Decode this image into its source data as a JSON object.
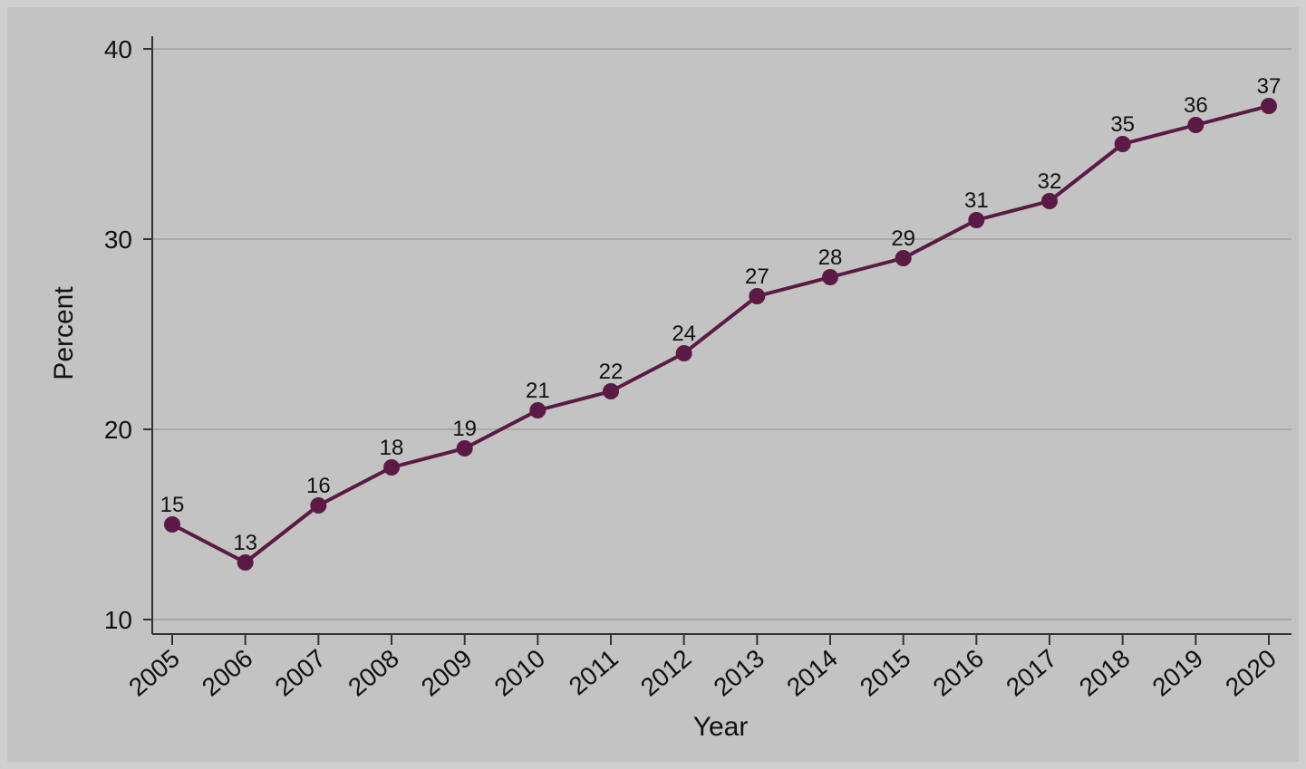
{
  "chart_data": {
    "type": "line",
    "title": "",
    "xlabel": "Year",
    "ylabel": "Percent",
    "x": [
      "2005",
      "2006",
      "2007",
      "2008",
      "2009",
      "2010",
      "2011",
      "2012",
      "2013",
      "2014",
      "2015",
      "2016",
      "2017",
      "2018",
      "2019",
      "2020"
    ],
    "series": [
      {
        "values": [
          15,
          13,
          16,
          18,
          19,
          21,
          22,
          24,
          27,
          28,
          29,
          31,
          32,
          35,
          36,
          37
        ]
      }
    ],
    "ylim": [
      10,
      40
    ],
    "yticks": [
      10,
      20,
      30,
      40
    ],
    "grid": "horizontal",
    "legend": "none",
    "colors": {
      "line": "#5a1a44",
      "grid": "#a9a9a9",
      "axis": "#333333",
      "background": "#c3c3c3"
    }
  }
}
